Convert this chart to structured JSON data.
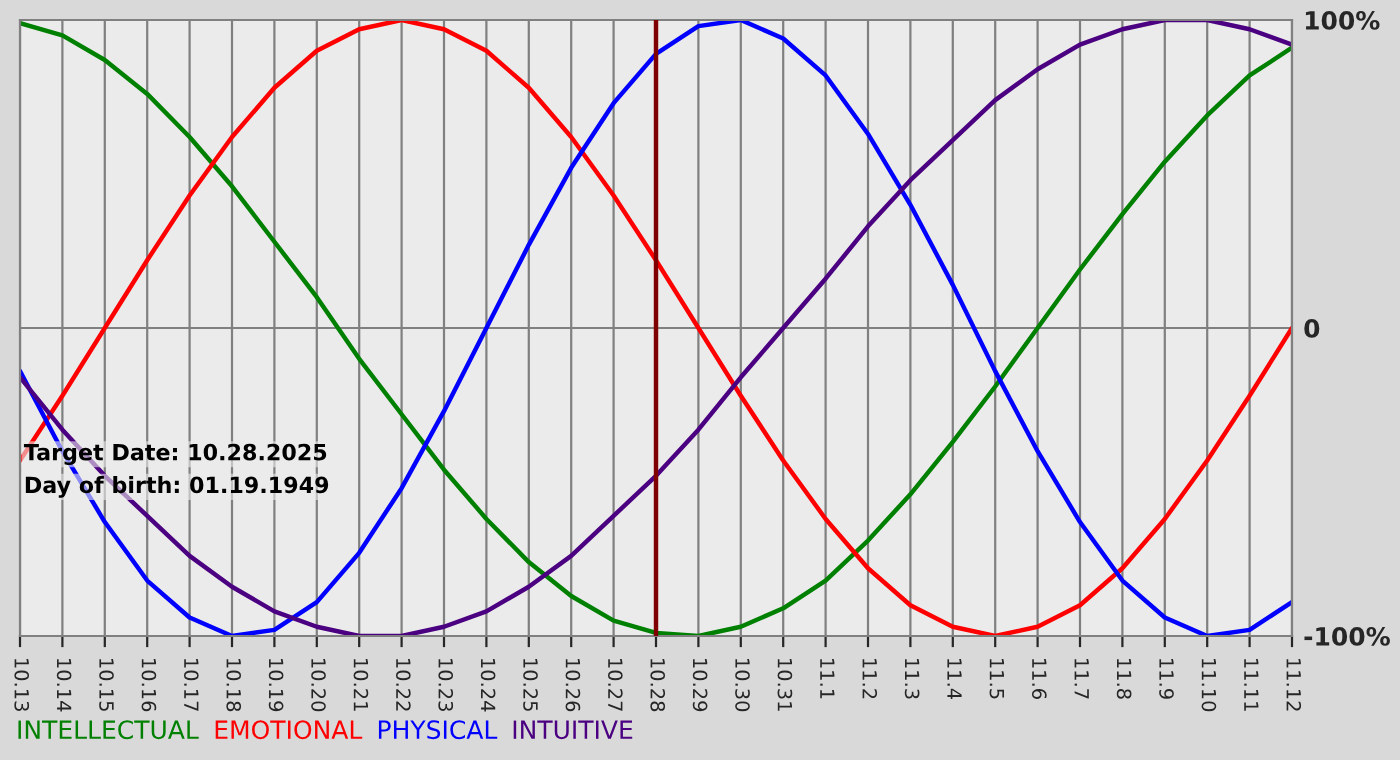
{
  "chart_data": {
    "type": "line",
    "categories": [
      "10.13",
      "10.14",
      "10.15",
      "10.16",
      "10.17",
      "10.18",
      "10.19",
      "10.20",
      "10.21",
      "10.22",
      "10.23",
      "10.24",
      "10.25",
      "10.26",
      "10.27",
      "10.28",
      "10.29",
      "10.30",
      "10.31",
      "11.1",
      "11.2",
      "11.3",
      "11.4",
      "11.5",
      "11.6",
      "11.7",
      "11.8",
      "11.9",
      "11.10",
      "11.11",
      "11.12"
    ],
    "series": [
      {
        "name": "INTELLECTUAL",
        "color": "#008000",
        "values": [
          99,
          95,
          87,
          76,
          62,
          46,
          28,
          10,
          -10,
          -28,
          -46,
          -62,
          -76,
          -87,
          -95,
          -99,
          -100,
          -97,
          -91,
          -82,
          -69,
          -54,
          -37,
          -19,
          0,
          19,
          37,
          54,
          69,
          82,
          91
        ]
      },
      {
        "name": "EMOTIONAL",
        "color": "#ff0000",
        "values": [
          -43,
          -22,
          0,
          22,
          43,
          62,
          78,
          90,
          97,
          100,
          97,
          90,
          78,
          62,
          43,
          22,
          0,
          -22,
          -43,
          -62,
          -78,
          -90,
          -97,
          -100,
          -97,
          -90,
          -78,
          -62,
          -43,
          -22,
          0
        ]
      },
      {
        "name": "PHYSICAL",
        "color": "#0000ff",
        "values": [
          -14,
          -40,
          -63,
          -82,
          -94,
          -100,
          -98,
          -89,
          -73,
          -52,
          -27,
          0,
          27,
          52,
          73,
          89,
          98,
          100,
          94,
          82,
          63,
          40,
          14,
          -14,
          -40,
          -63,
          -82,
          -94,
          -100,
          -98,
          -89
        ]
      },
      {
        "name": "INTUITIVE",
        "color": "#4b0082",
        "values": [
          -16,
          -33,
          -48,
          -61,
          -74,
          -84,
          -92,
          -97,
          -100,
          -100,
          -97,
          -92,
          -84,
          -74,
          -61,
          -48,
          -33,
          -16,
          0,
          16,
          33,
          48,
          61,
          74,
          84,
          92,
          97,
          100,
          100,
          97,
          92
        ]
      }
    ],
    "ylim": [
      -100,
      100
    ],
    "yticks": [
      {
        "value": 100,
        "label": "100%"
      },
      0,
      {
        "value": -100,
        "label": "-100%"
      }
    ],
    "ref_lines": [
      {
        "axis": "x",
        "value": "10.28",
        "color": "#800000"
      }
    ],
    "annotations": [
      "Target Date: 10.28.2025",
      "Day of birth: 01.19.1949"
    ],
    "grid": true,
    "legend": "bottom"
  }
}
